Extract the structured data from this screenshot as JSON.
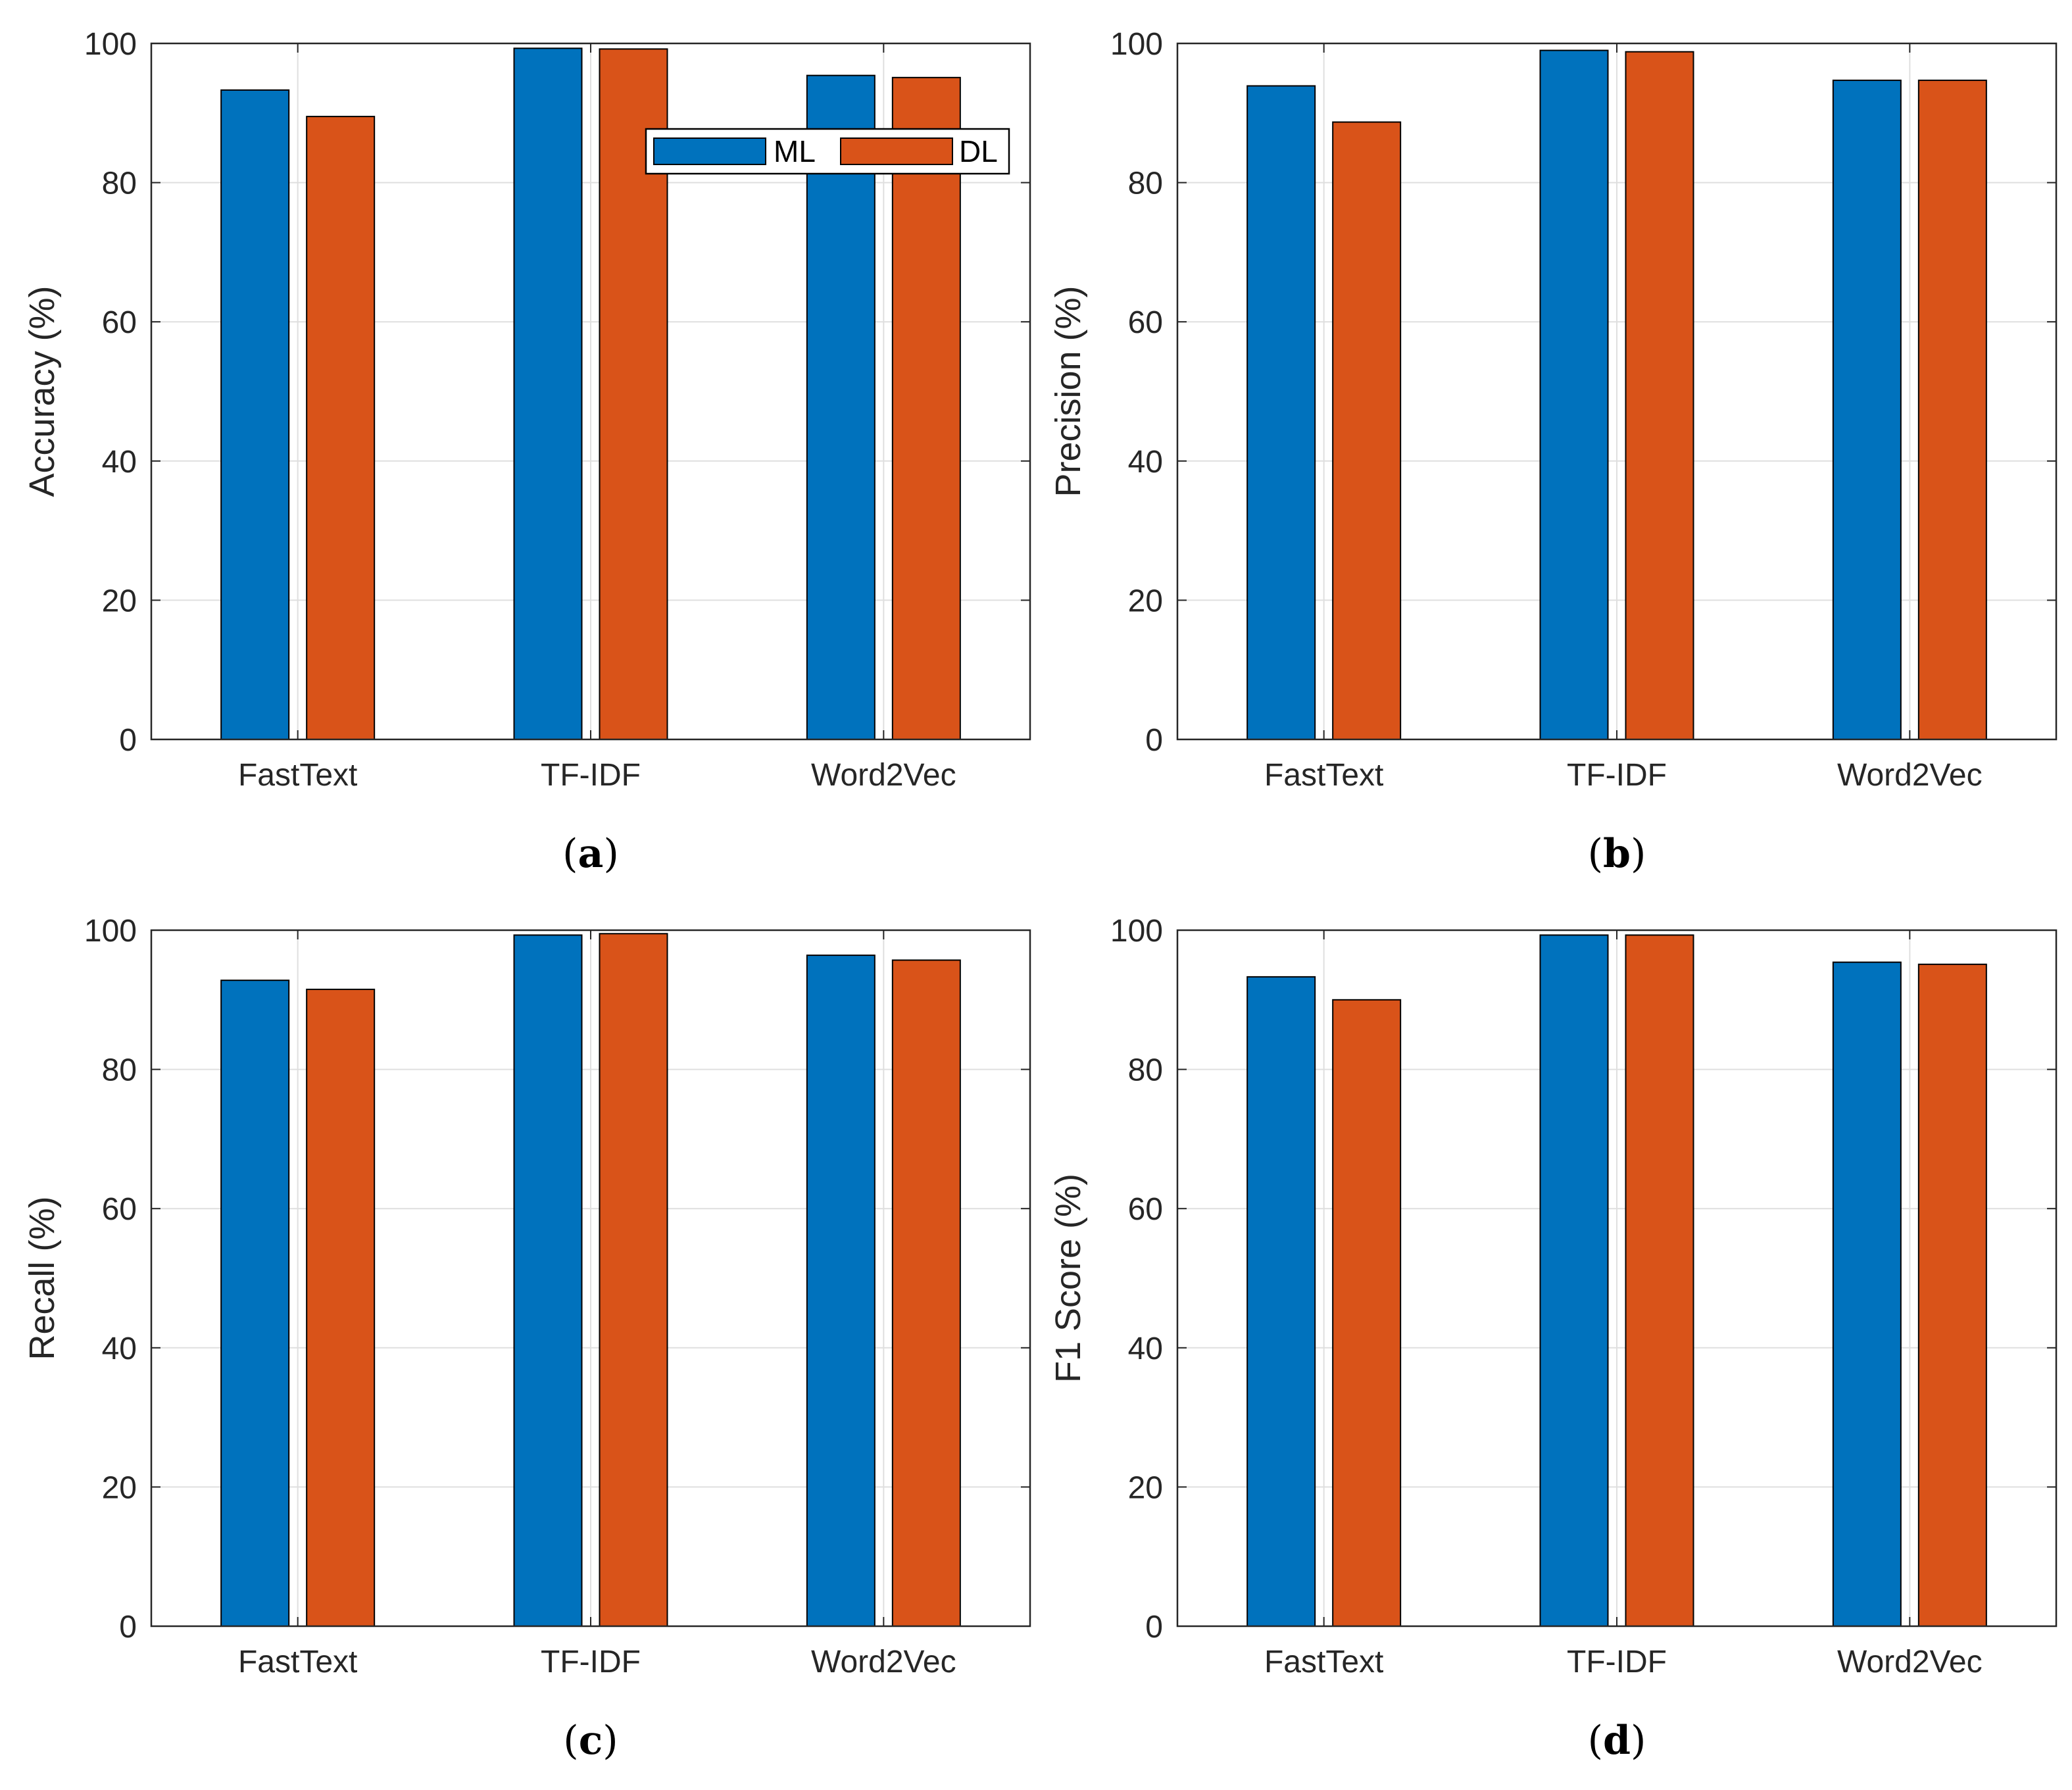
{
  "colors": {
    "ML": "#0072BD",
    "DL": "#D95319",
    "grid": "#DFDFDF",
    "axis": "#262626"
  },
  "legend": {
    "placement": "top-right (panel a)",
    "entries": [
      "ML",
      "DL"
    ]
  },
  "chart_data": [
    {
      "type": "bar",
      "panel": "a",
      "caption": "(a)",
      "caption_letter": "a",
      "categories": [
        "FastText",
        "TF-IDF",
        "Word2Vec"
      ],
      "series": [
        {
          "name": "ML",
          "values": [
            93.3,
            99.3,
            95.4
          ]
        },
        {
          "name": "DL",
          "values": [
            89.5,
            99.2,
            95.1
          ]
        }
      ],
      "title": "",
      "xlabel": "",
      "ylabel": "Accuracy (%)",
      "ylim": [
        0,
        100
      ],
      "yticks": [
        "0",
        "20",
        "40",
        "60",
        "80",
        "100"
      ],
      "grid": true
    },
    {
      "type": "bar",
      "panel": "b",
      "caption": "(b)",
      "caption_letter": "b",
      "categories": [
        "FastText",
        "TF-IDF",
        "Word2Vec"
      ],
      "series": [
        {
          "name": "ML",
          "values": [
            93.9,
            99.0,
            94.7
          ]
        },
        {
          "name": "DL",
          "values": [
            88.7,
            98.8,
            94.7
          ]
        }
      ],
      "title": "",
      "xlabel": "",
      "ylabel": "Precision (%)",
      "ylim": [
        0,
        100
      ],
      "yticks": [
        "0",
        "20",
        "40",
        "60",
        "80",
        "100"
      ],
      "grid": true
    },
    {
      "type": "bar",
      "panel": "c",
      "caption": "(c)",
      "caption_letter": "c",
      "categories": [
        "FastText",
        "TF-IDF",
        "Word2Vec"
      ],
      "series": [
        {
          "name": "ML",
          "values": [
            92.8,
            99.3,
            96.4
          ]
        },
        {
          "name": "DL",
          "values": [
            91.5,
            99.5,
            95.7
          ]
        }
      ],
      "title": "",
      "xlabel": "",
      "ylabel": "Recall (%)",
      "ylim": [
        0,
        100
      ],
      "yticks": [
        "0",
        "20",
        "40",
        "60",
        "80",
        "100"
      ],
      "grid": true
    },
    {
      "type": "bar",
      "panel": "d",
      "caption": "(d)",
      "caption_letter": "d",
      "categories": [
        "FastText",
        "TF-IDF",
        "Word2Vec"
      ],
      "series": [
        {
          "name": "ML",
          "values": [
            93.3,
            99.3,
            95.4
          ]
        },
        {
          "name": "DL",
          "values": [
            90.0,
            99.3,
            95.1
          ]
        }
      ],
      "title": "",
      "xlabel": "",
      "ylabel": "F1 Score (%)",
      "ylim": [
        0,
        100
      ],
      "yticks": [
        "0",
        "20",
        "40",
        "60",
        "80",
        "100"
      ],
      "grid": true
    }
  ]
}
